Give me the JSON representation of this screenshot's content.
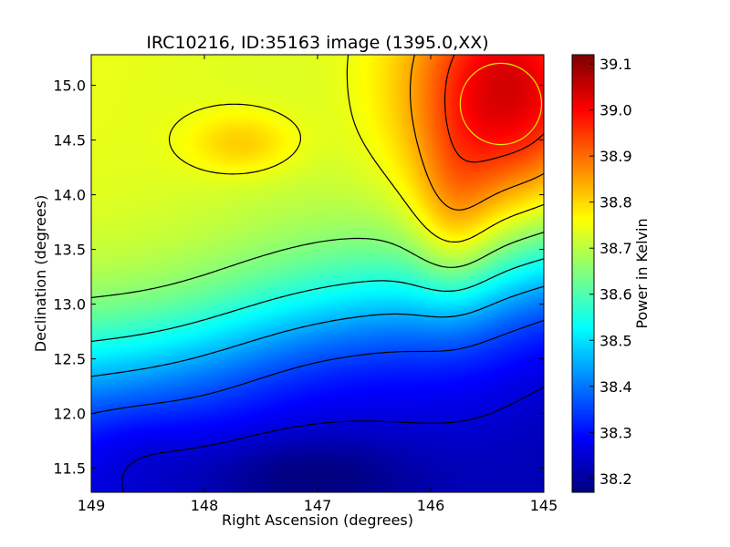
{
  "chart_data": {
    "type": "heatmap",
    "title": "IRC10216, ID:35163 image (1395.0,XX)",
    "xlabel": "Right Ascension (degrees)",
    "ylabel": "Declination (degrees)",
    "colorbar_label": "Power in Kelvin",
    "colormap": "jet",
    "xlim": [
      149.0,
      145.0
    ],
    "ylim": [
      11.28,
      15.28
    ],
    "x_ticks": [
      149,
      148,
      147,
      146,
      145
    ],
    "x_tick_labels": [
      "149",
      "148",
      "147",
      "146",
      "145"
    ],
    "y_ticks": [
      11.5,
      12.0,
      12.5,
      13.0,
      13.5,
      14.0,
      14.5,
      15.0
    ],
    "y_tick_labels": [
      "11.5",
      "12.0",
      "12.5",
      "13.0",
      "13.5",
      "14.0",
      "14.5",
      "15.0"
    ],
    "color_range": [
      38.17,
      39.12
    ],
    "colorbar_ticks": [
      38.2,
      38.3,
      38.4,
      38.5,
      38.6,
      38.7,
      38.8,
      38.9,
      39.0,
      39.1
    ],
    "colorbar_tick_labels": [
      "38.2",
      "38.3",
      "38.4",
      "38.5",
      "38.6",
      "38.7",
      "38.8",
      "38.9",
      "39.0",
      "39.1"
    ],
    "contour_levels": [
      38.25,
      38.35,
      38.45,
      38.55,
      38.65,
      38.75,
      38.85,
      38.95,
      39.05
    ],
    "contour_color": "#000000",
    "features": [
      {
        "kind": "maximum",
        "ra": 145.35,
        "dec": 14.95,
        "value": 39.12
      },
      {
        "kind": "local_max",
        "ra": 147.7,
        "dec": 14.38,
        "value": 38.89
      },
      {
        "kind": "minimum",
        "ra": 147.15,
        "dec": 11.35,
        "value": 38.17
      }
    ],
    "marker_circle": {
      "ra": 145.38,
      "dec": 14.83,
      "radius_deg": 0.36,
      "color": "#e6e600"
    }
  }
}
